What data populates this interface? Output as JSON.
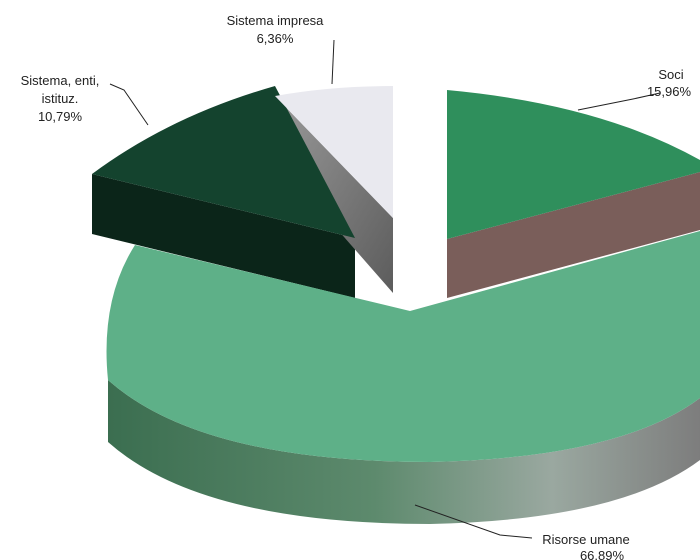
{
  "chart_data": {
    "type": "pie",
    "style": "3d-exploded",
    "slices": [
      {
        "name": "Soci",
        "value_label": "15,96%",
        "value": 15.96,
        "color": "#2f8f5c",
        "side_color": "#7a5e5a"
      },
      {
        "name": "Risorse umane",
        "value_label": "66,89%",
        "value": 66.89,
        "color": "#5eb088",
        "side_color": "#5d7e67"
      },
      {
        "name": "Sistema, enti, istituz.",
        "name_lines": [
          "Sistema, enti,",
          "istituz."
        ],
        "value_label": "10,79%",
        "value": 10.79,
        "color": "#14432e",
        "side_color": "#0b2519"
      },
      {
        "name": "Sistema impresa",
        "value_label": "6,36%",
        "value": 6.36,
        "color": "#e9e9ef",
        "side_color": "#8a8a8a"
      }
    ]
  }
}
